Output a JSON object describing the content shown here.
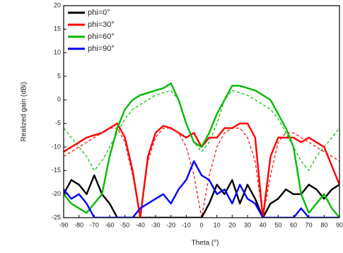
{
  "chart_data": {
    "type": "line",
    "xlabel": "Theta (°)",
    "ylabel": "Realized gain (dBi)",
    "x": [
      -90,
      -85,
      -80,
      -75,
      -70,
      -65,
      -60,
      -55,
      -50,
      -45,
      -40,
      -35,
      -30,
      -25,
      -20,
      -15,
      -10,
      -5,
      0,
      5,
      10,
      15,
      20,
      25,
      30,
      35,
      40,
      45,
      50,
      55,
      60,
      65,
      70,
      75,
      80,
      85,
      90
    ],
    "xlim": [
      -90,
      90
    ],
    "xticks": [
      -90,
      -80,
      -70,
      -60,
      -50,
      -40,
      -30,
      -20,
      -10,
      0,
      10,
      20,
      30,
      40,
      50,
      60,
      70,
      80,
      90
    ],
    "ylim": [
      -25,
      20
    ],
    "yticks": [
      -25,
      -20,
      -15,
      -10,
      -5,
      0,
      5,
      10,
      15,
      20
    ],
    "legend": "upper left",
    "series": [
      {
        "color": "#00bb00",
        "dashed": true,
        "values": [
          -6,
          -8,
          -10,
          -12,
          -15,
          -13,
          -10,
          -7,
          -4,
          -2,
          -1,
          0,
          1,
          1.5,
          2,
          0,
          -5,
          -9,
          -11,
          -9,
          -5,
          0,
          2,
          1.5,
          1,
          0,
          -1,
          -2,
          -4,
          -7,
          -10,
          -13,
          -15,
          -12,
          -10,
          -8,
          -6
        ]
      },
      {
        "color": "#ff0000",
        "dashed": true,
        "values": [
          -12,
          -11,
          -10,
          -9,
          -8,
          -7,
          -6,
          -6,
          -9,
          -16,
          -25,
          -13,
          -8,
          -6,
          -6,
          -7,
          -10,
          -16,
          -25,
          -16,
          -10,
          -7,
          -6,
          -6,
          -8,
          -13,
          -25,
          -16,
          -9,
          -7,
          -7,
          -8,
          -9,
          -10,
          -11,
          -12,
          -13
        ]
      },
      {
        "name": "phi=0°",
        "color": "#000000",
        "values": [
          -20,
          -17,
          -18,
          -20,
          -16,
          -20,
          -22,
          -25,
          -25,
          -25,
          -25,
          -25,
          -25,
          -25,
          -25,
          -25,
          -25,
          -25,
          -25,
          -22,
          -18,
          -20,
          -17,
          -22,
          -18,
          -21,
          -25,
          -22,
          -21,
          -19,
          -20,
          -20,
          -18,
          -19,
          -21,
          -19,
          -18
        ]
      },
      {
        "name": "phi=30°",
        "color": "#ff0000",
        "values": [
          -11,
          -10,
          -9,
          -8,
          -7.5,
          -7,
          -6,
          -5,
          -8,
          -15,
          -25,
          -12,
          -7,
          -5.5,
          -6,
          -7,
          -8,
          -7,
          -10,
          -8,
          -8,
          -6,
          -6,
          -5,
          -5,
          -8,
          -25,
          -12,
          -8,
          -8,
          -8,
          -9,
          -8,
          -9,
          -10,
          -14,
          -18
        ]
      },
      {
        "name": "phi=60°",
        "color": "#00bb00",
        "values": [
          -20,
          -22,
          -23,
          -24,
          -22,
          -20,
          -12,
          -6,
          -2,
          0,
          1,
          1.5,
          2,
          2.5,
          3.5,
          0,
          -5,
          -9,
          -10,
          -7,
          -3,
          0,
          3,
          3,
          2.5,
          2,
          1,
          0,
          -3,
          -6,
          -10,
          -20,
          -24,
          -22,
          -20,
          -23,
          -25
        ]
      },
      {
        "name": "phi=90°",
        "color": "#0000ff",
        "values": [
          -19,
          -21,
          -20,
          -22,
          -25,
          -25,
          -25,
          -25,
          -25,
          -25,
          -23,
          -22,
          -21,
          -20,
          -22,
          -19,
          -17,
          -13,
          -16,
          -17,
          -20,
          -19,
          -22,
          -18,
          -21,
          -22,
          -25,
          -25,
          -25,
          -25,
          -25,
          -23,
          -25,
          -25,
          -25,
          -25,
          -25
        ]
      }
    ]
  }
}
